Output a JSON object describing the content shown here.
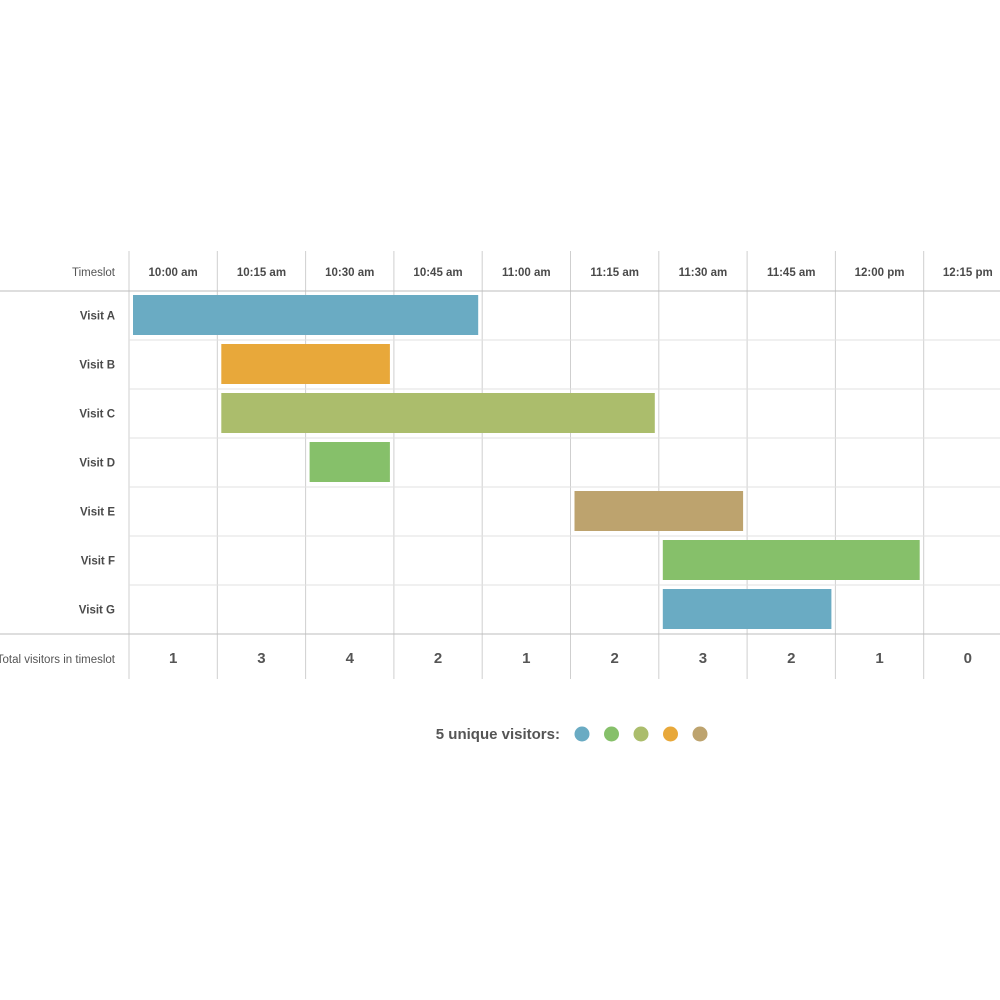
{
  "chart_data": {
    "type": "gantt",
    "column_header": "Timeslot",
    "timeslots": [
      "10:00 am",
      "10:15 am",
      "10:30 am",
      "10:45 am",
      "11:00 am",
      "11:15 am",
      "11:30 am",
      "11:45 am",
      "12:00 pm",
      "12:15 pm"
    ],
    "rows": [
      {
        "label": "Visit A",
        "start": "10:00 am",
        "end": "11:00 am",
        "color": "#6aabc3"
      },
      {
        "label": "Visit B",
        "start": "10:15 am",
        "end": "10:45 am",
        "color": "#e8a83a"
      },
      {
        "label": "Visit C",
        "start": "10:15 am",
        "end": "11:30 am",
        "color": "#abbd6c"
      },
      {
        "label": "Visit D",
        "start": "10:30 am",
        "end": "10:45 am",
        "color": "#86c06a"
      },
      {
        "label": "Visit E",
        "start": "11:15 am",
        "end": "11:45 am",
        "color": "#bda36e"
      },
      {
        "label": "Visit F",
        "start": "11:30 am",
        "end": "12:15 pm",
        "color": "#86c06a"
      },
      {
        "label": "Visit G",
        "start": "11:30 am",
        "end": "12:00 pm",
        "color": "#6aabc3"
      }
    ],
    "total_label": "Total visitors in timeslot",
    "totals": [
      1,
      3,
      4,
      2,
      1,
      2,
      3,
      2,
      1,
      0
    ]
  },
  "legend": {
    "label": "5 unique visitors:",
    "colors": [
      "#6aabc3",
      "#86c06a",
      "#abbd6c",
      "#e8a83a",
      "#bda36e"
    ]
  }
}
